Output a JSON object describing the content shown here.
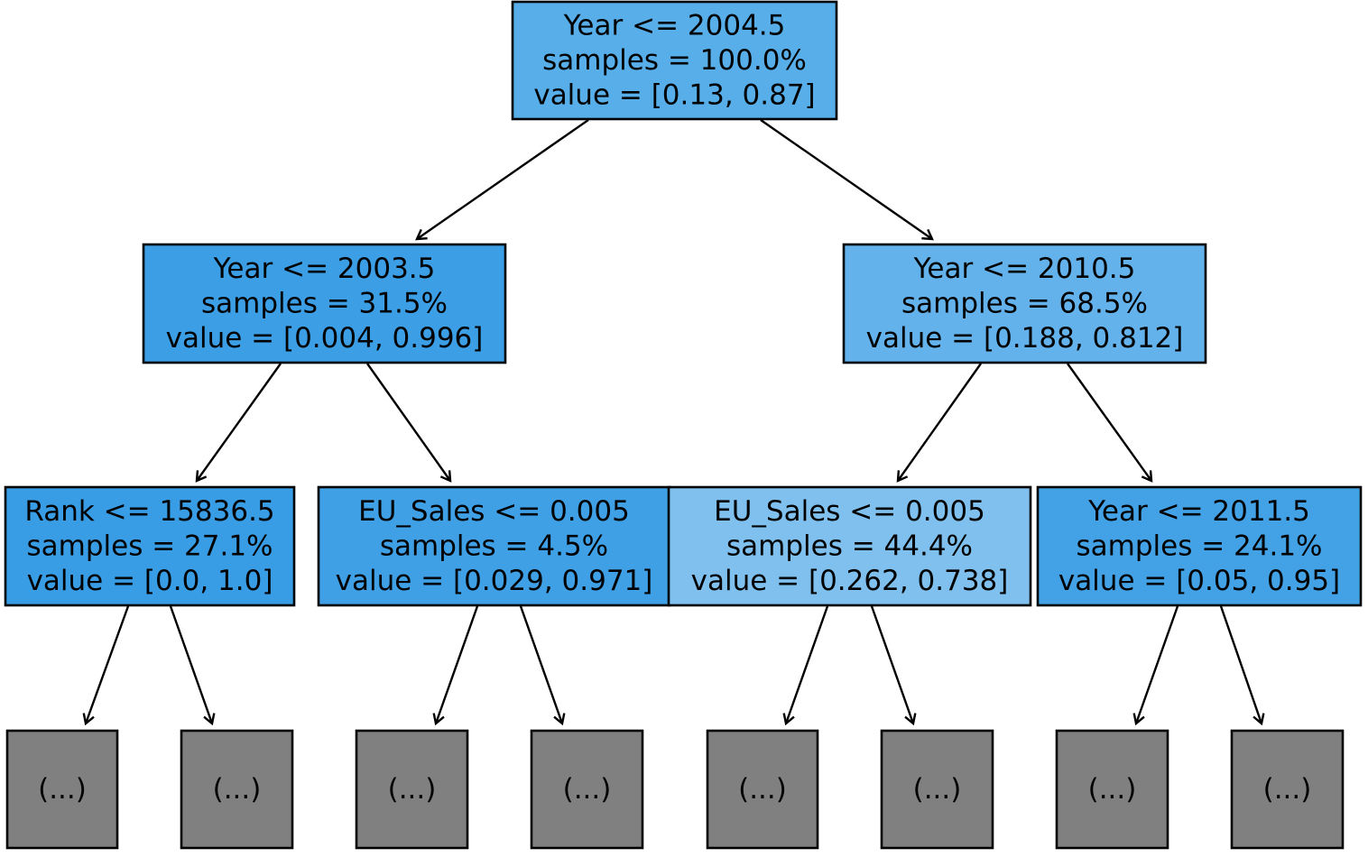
{
  "tree": {
    "nodes": [
      {
        "id": "n0",
        "lines": [
          "Year <= 2004.5",
          "samples = 100.0%",
          "value = [0.13, 0.87]"
        ],
        "fill": "#57aee9"
      },
      {
        "id": "n1",
        "lines": [
          "Year <= 2003.5",
          "samples = 31.5%",
          "value = [0.004, 0.996]"
        ],
        "fill": "#3c9ee5"
      },
      {
        "id": "n2",
        "lines": [
          "Year <= 2010.5",
          "samples = 68.5%",
          "value = [0.188, 0.812]"
        ],
        "fill": "#64b2eb"
      },
      {
        "id": "n3",
        "lines": [
          "Rank <= 15836.5",
          "samples = 27.1%",
          "value = [0.0, 1.0]"
        ],
        "fill": "#399de5"
      },
      {
        "id": "n4",
        "lines": [
          "EU_Sales <= 0.005",
          "samples = 4.5%",
          "value = [0.029, 0.971]"
        ],
        "fill": "#3fa0e6"
      },
      {
        "id": "n5",
        "lines": [
          "EU_Sales <= 0.005",
          "samples = 44.4%",
          "value = [0.262, 0.738]"
        ],
        "fill": "#7fc0ee"
      },
      {
        "id": "n6",
        "lines": [
          "Year <= 2011.5",
          "samples = 24.1%",
          "value = [0.05, 0.95]"
        ],
        "fill": "#43a2e6"
      },
      {
        "id": "t0",
        "lines": [
          "(...)"
        ],
        "fill": "#808080"
      },
      {
        "id": "t1",
        "lines": [
          "(...)"
        ],
        "fill": "#808080"
      },
      {
        "id": "t2",
        "lines": [
          "(...)"
        ],
        "fill": "#808080"
      },
      {
        "id": "t3",
        "lines": [
          "(...)"
        ],
        "fill": "#808080"
      },
      {
        "id": "t4",
        "lines": [
          "(...)"
        ],
        "fill": "#808080"
      },
      {
        "id": "t5",
        "lines": [
          "(...)"
        ],
        "fill": "#808080"
      },
      {
        "id": "t6",
        "lines": [
          "(...)"
        ],
        "fill": "#808080"
      },
      {
        "id": "t7",
        "lines": [
          "(...)"
        ],
        "fill": "#808080"
      }
    ],
    "edges": [
      [
        "n0",
        "n1"
      ],
      [
        "n0",
        "n2"
      ],
      [
        "n1",
        "n3"
      ],
      [
        "n1",
        "n4"
      ],
      [
        "n2",
        "n5"
      ],
      [
        "n2",
        "n6"
      ],
      [
        "n3",
        "t0"
      ],
      [
        "n3",
        "t1"
      ],
      [
        "n4",
        "t2"
      ],
      [
        "n4",
        "t3"
      ],
      [
        "n5",
        "t4"
      ],
      [
        "n5",
        "t5"
      ],
      [
        "n6",
        "t6"
      ],
      [
        "n6",
        "t7"
      ]
    ]
  }
}
